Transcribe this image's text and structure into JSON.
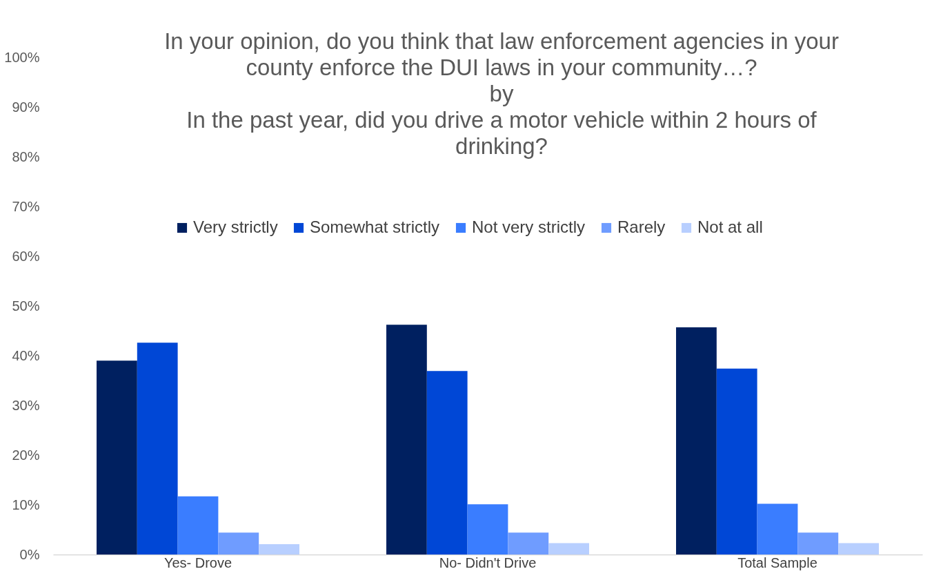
{
  "chart_data": {
    "type": "bar",
    "title": "In your opinion, do you think that law enforcement agencies in your\ncounty enforce the DUI laws in your community…?\nby\nIn the past year, did you drive a motor vehicle within 2 hours of\ndrinking?",
    "categories": [
      "Yes- Drove",
      "No- Didn't Drive",
      "Total Sample"
    ],
    "series": [
      {
        "name": "Very strictly",
        "color": "#002060",
        "values": [
          39.0,
          46.2,
          45.7
        ]
      },
      {
        "name": "Somewhat strictly",
        "color": "#0047d6",
        "values": [
          42.6,
          36.9,
          37.4
        ]
      },
      {
        "name": "Not very strictly",
        "color": "#3a7dff",
        "values": [
          11.7,
          10.1,
          10.2
        ]
      },
      {
        "name": "Rarely",
        "color": "#6f9cff",
        "values": [
          4.4,
          4.4,
          4.4
        ]
      },
      {
        "name": "Not at all",
        "color": "#b8cfff",
        "values": [
          2.1,
          2.3,
          2.3
        ]
      }
    ],
    "ylim": [
      0,
      100
    ],
    "yticks": [
      {
        "value": 0,
        "label": "0%"
      },
      {
        "value": 10,
        "label": "10%"
      },
      {
        "value": 20,
        "label": "20%"
      },
      {
        "value": 30,
        "label": "30%"
      },
      {
        "value": 40,
        "label": "40%"
      },
      {
        "value": 50,
        "label": "50%"
      },
      {
        "value": 60,
        "label": "60%"
      },
      {
        "value": 70,
        "label": "70%"
      },
      {
        "value": 80,
        "label": "80%"
      },
      {
        "value": 90,
        "label": "90%"
      },
      {
        "value": 100,
        "label": "100%"
      }
    ],
    "grid": false,
    "legend": "top"
  }
}
